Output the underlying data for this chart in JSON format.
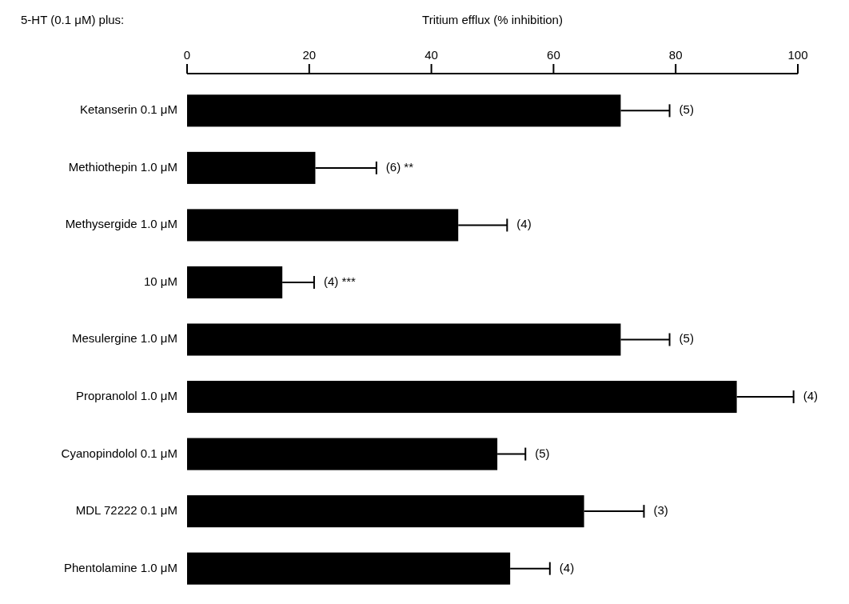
{
  "chart_data": {
    "type": "bar",
    "orientation": "horizontal",
    "xlabel": "Tritium efflux (% inhibition)",
    "ylabel": "5-HT (0.1 μM) plus:",
    "categories": [
      "Ketanserin 0.1 μM",
      "Methiothepin  1.0 μM",
      "Methysergide 1.0 μM",
      "10 μM",
      "Mesulergine 1.0 μM",
      "Propranolol 1.0 μM",
      "Cyanopindolol 0.1 μM",
      "MDL 72222 0.1 μM",
      "Phentolamine 1.0 μM"
    ],
    "values": [
      71,
      21,
      44.4,
      15.6,
      71,
      90,
      50.8,
      65,
      52.9
    ],
    "errors": [
      [
        71,
        79
      ],
      [
        21,
        31
      ],
      [
        44.4,
        52.4
      ],
      [
        15.6,
        20.8
      ],
      [
        71,
        79
      ],
      [
        90,
        99.3
      ],
      [
        50.8,
        55.4
      ],
      [
        65,
        74.8
      ],
      [
        52.9,
        59.4
      ]
    ],
    "annotations": [
      {
        "text": "(5)",
        "x": 79,
        "y": "Ketanserin 0.1 μM"
      },
      {
        "text": "(6) **",
        "x": 31,
        "y": "Methiothepin  1.0 μM"
      },
      {
        "text": "(4)",
        "x": 52.4,
        "y": "Methysergide 1.0 μM"
      },
      {
        "text": "(4) ***",
        "x": 20.8,
        "y": "10 μM"
      },
      {
        "text": "(5)",
        "x": 79,
        "y": "Mesulergine 1.0 μM"
      },
      {
        "text": "(4)",
        "x": 99.3,
        "y": "Propranolol 1.0 μM"
      },
      {
        "text": "(5)",
        "x": 55.4,
        "y": "Cyanopindolol 0.1 μM"
      },
      {
        "text": "(3)",
        "x": 74.8,
        "y": "MDL 72222 0.1 μM"
      },
      {
        "text": "(4)",
        "x": 59.4,
        "y": "Phentolamine 1.0 μM"
      }
    ],
    "color": "#000000",
    "xlim": [
      0,
      100
    ],
    "xticks": [
      0,
      20,
      40,
      60,
      80,
      100
    ]
  }
}
